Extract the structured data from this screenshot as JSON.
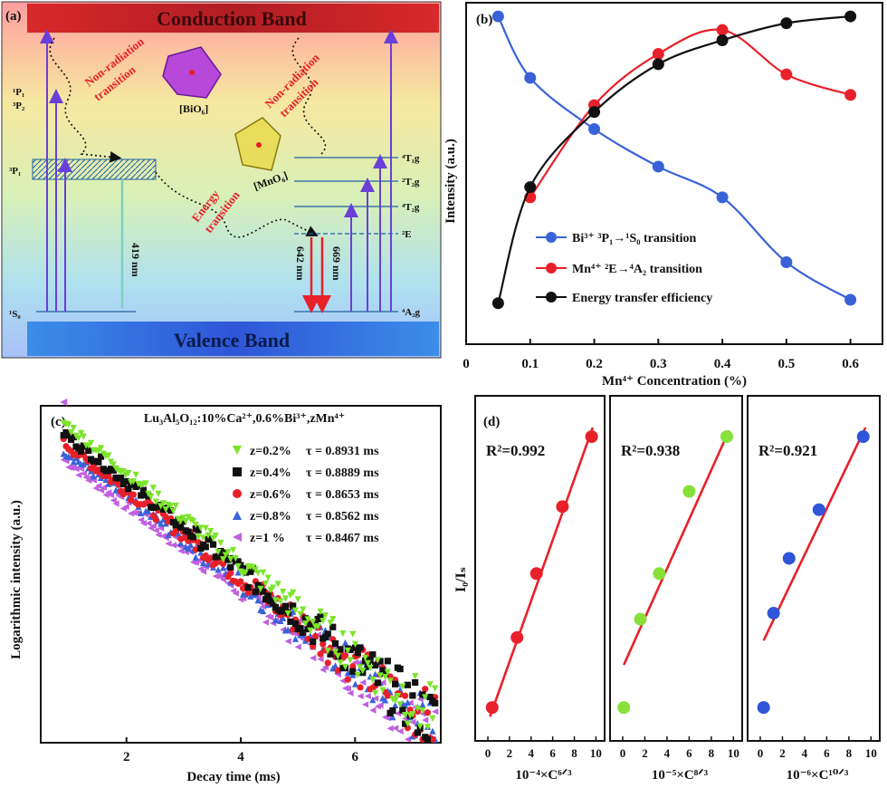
{
  "panel_a": {
    "label": "(a)",
    "conduction_band": "Conduction Band",
    "valence_band": "Valence Band",
    "bi_levels": {
      "p1": "¹P₁",
      "p2": "³P₂",
      "p3": "³P₁",
      "s0": "¹S₀"
    },
    "mn_levels": {
      "t1g": "⁴T₁g",
      "t2g_2": "²T₂g",
      "t2g_4": "⁴T₂g",
      "e": "²E",
      "a2g": "⁴A₂g"
    },
    "non_rad_1": [
      "Non-radiation",
      "transition"
    ],
    "non_rad_2": [
      "Non-radiation",
      "transition"
    ],
    "energy_transition": [
      "Energy",
      "transition"
    ],
    "bio6": "[BiO₆]",
    "mno6": "[MnO₆]",
    "emission_bi": "419 nm",
    "emission_mn1": "642 nm",
    "emission_mn2": "669 nm",
    "colors": {
      "conduction": "#c0282d",
      "valence": "#3a6fd8",
      "red": "#e8202a",
      "arrow": "#6a3fd8",
      "teal": "#7fd0c0"
    }
  },
  "chart_data": [
    {
      "panel": "(b)",
      "type": "line",
      "xlabel": "Mn⁴⁺ Concentration (%)",
      "ylabel": "Intensity (a.u.)",
      "xlim": [
        0,
        0.65
      ],
      "ylim": [
        0,
        1
      ],
      "xticks": [
        "0",
        "0.1",
        "0.2",
        "0.3",
        "0.4",
        "0.5",
        "0.6"
      ],
      "xtick_values": [
        0,
        0.1,
        0.2,
        0.3,
        0.4,
        0.5,
        0.6
      ],
      "series": [
        {
          "name": "Bi³⁺ ³P₁→¹S₀ transition",
          "color": "#3a62d8",
          "x": [
            0.05,
            0.1,
            0.2,
            0.3,
            0.4,
            0.5,
            0.6
          ],
          "y": [
            0.96,
            0.78,
            0.63,
            0.52,
            0.43,
            0.24,
            0.13
          ]
        },
        {
          "name": "Mn⁴⁺ ²E→⁴A₂ transition",
          "color": "#e8202a",
          "x": [
            0.1,
            0.2,
            0.3,
            0.4,
            0.5,
            0.6
          ],
          "y": [
            0.43,
            0.7,
            0.85,
            0.92,
            0.79,
            0.73
          ]
        },
        {
          "name": "Energy transfer efficiency",
          "color": "#111111",
          "x": [
            0.05,
            0.1,
            0.2,
            0.3,
            0.4,
            0.5,
            0.6
          ],
          "y": [
            0.12,
            0.46,
            0.68,
            0.82,
            0.89,
            0.94,
            0.96
          ]
        }
      ]
    },
    {
      "panel": "(c)",
      "type": "scatter",
      "title": "Lu₃Al₅O₁₂:10%Ca²⁺,0.6%Bi³⁺,zMn⁴⁺",
      "xlabel": "Decay time (ms)",
      "ylabel": "Logarithmic intensity (a.u.)",
      "xlim": [
        0.5,
        7.5
      ],
      "xticks": [
        "2",
        "4",
        "6"
      ],
      "xtick_values": [
        2,
        4,
        6
      ],
      "series": [
        {
          "name": "z=0.2%",
          "tau": "τ = 0.8931 ms",
          "color": "#7be52a",
          "marker": "triangle-down",
          "start": 0.95,
          "end": 0.07
        },
        {
          "name": "z=0.4%",
          "tau": "τ = 0.8889 ms",
          "color": "#111111",
          "marker": "square",
          "start": 0.92,
          "end": 0.06
        },
        {
          "name": "z=0.6%",
          "tau": "τ = 0.8653 ms",
          "color": "#e8202a",
          "marker": "circle",
          "start": 0.89,
          "end": 0.05
        },
        {
          "name": "z=0.8%",
          "tau": "τ = 0.8562 ms",
          "color": "#3a62d8",
          "marker": "triangle-up",
          "start": 0.87,
          "end": 0.04
        },
        {
          "name": "z=1 %",
          "tau": "τ = 0.8467 ms",
          "color": "#c060e0",
          "marker": "triangle-left",
          "start": 0.84,
          "end": 0.02
        }
      ]
    },
    {
      "panel": "(d)",
      "type": "scatter",
      "ylabel": "I₀/Iₛ",
      "xticks": [
        "0",
        "2",
        "4",
        "6",
        "8",
        "10"
      ],
      "xtick_values": [
        0,
        2,
        4,
        6,
        8,
        10
      ],
      "subplots": [
        {
          "xlabel": "10⁻⁴×C⁶ᐟ³",
          "r2": "R²=0.992",
          "color": "#e8202a",
          "x": [
            0.4,
            2.7,
            4.5,
            6.9,
            9.6
          ],
          "y": [
            0.08,
            0.31,
            0.52,
            0.74,
            0.97
          ],
          "fit": [
            [
              0.2,
              0.05
            ],
            [
              9.7,
              1.0
            ]
          ]
        },
        {
          "xlabel": "10⁻⁵×C⁸ᐟ³",
          "r2": "R²=0.938",
          "color": "#88e03a",
          "x": [
            0.1,
            1.6,
            3.3,
            6.0,
            9.4
          ],
          "y": [
            0.08,
            0.37,
            0.52,
            0.79,
            0.97
          ],
          "fit": [
            [
              0.1,
              0.22
            ],
            [
              9.6,
              0.99
            ]
          ]
        },
        {
          "xlabel": "10⁻⁶×C¹⁰ᐟ³",
          "r2": "R²=0.921",
          "color": "#2f55d8",
          "x": [
            0.3,
            1.2,
            2.6,
            5.3,
            9.3
          ],
          "y": [
            0.08,
            0.39,
            0.57,
            0.73,
            0.97
          ],
          "fit": [
            [
              0.3,
              0.3
            ],
            [
              9.5,
              1.0
            ]
          ]
        }
      ]
    }
  ]
}
